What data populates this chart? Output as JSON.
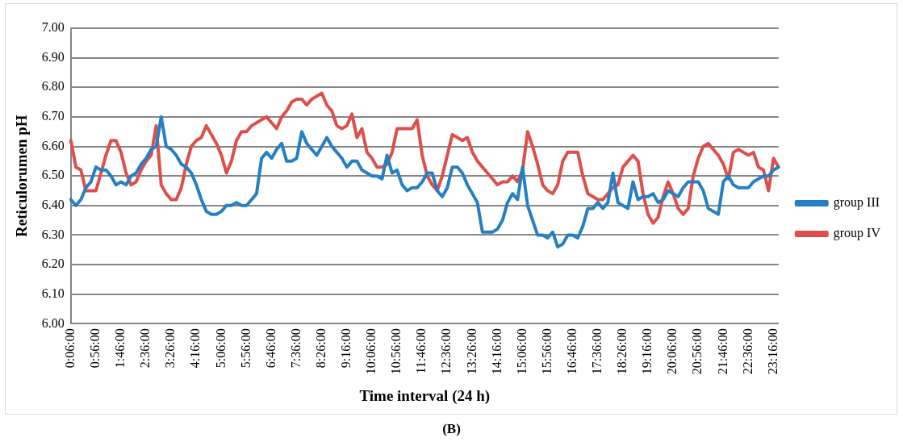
{
  "chart_data": {
    "type": "line",
    "xlabel": "Time interval (24 h)",
    "ylabel": "Reticulorumen pH",
    "categories": [
      "0:06:00",
      null,
      null,
      null,
      null,
      "0:56:00",
      null,
      null,
      null,
      null,
      "1:46:00",
      null,
      null,
      null,
      null,
      "2:36:00",
      null,
      null,
      null,
      null,
      "3:26:00",
      null,
      null,
      null,
      null,
      "4:16:00",
      null,
      null,
      null,
      null,
      "5:06:00",
      null,
      null,
      null,
      null,
      "5:56:00",
      null,
      null,
      null,
      null,
      "6:46:00",
      null,
      null,
      null,
      null,
      "7:36:00",
      null,
      null,
      null,
      null,
      "8:26:00",
      null,
      null,
      null,
      null,
      "9:16:00",
      null,
      null,
      null,
      null,
      "10:06:00",
      null,
      null,
      null,
      null,
      "10:56:00",
      null,
      null,
      null,
      null,
      "11:46:00",
      null,
      null,
      null,
      null,
      "12:36:00",
      null,
      null,
      null,
      null,
      "13:26:00",
      null,
      null,
      null,
      null,
      "14:16:00",
      null,
      null,
      null,
      null,
      "15:06:00",
      null,
      null,
      null,
      null,
      "15:56:00",
      null,
      null,
      null,
      null,
      "16:46:00",
      null,
      null,
      null,
      null,
      "17:36:00",
      null,
      null,
      null,
      null,
      "18:26:00",
      null,
      null,
      null,
      null,
      "19:16:00",
      null,
      null,
      null,
      null,
      "20:06:00",
      null,
      null,
      null,
      null,
      "20:56:00",
      null,
      null,
      null,
      null,
      "21:46:00",
      null,
      null,
      null,
      null,
      "22:36:00",
      null,
      null,
      null,
      null,
      "23:16:00",
      null
    ],
    "series": [
      {
        "name": "group III",
        "color": "#2580c3",
        "values": [
          6.42,
          6.4,
          6.42,
          6.46,
          6.48,
          6.53,
          6.52,
          6.52,
          6.5,
          6.47,
          6.48,
          6.47,
          6.5,
          6.51,
          6.54,
          6.56,
          6.59,
          6.6,
          6.7,
          6.6,
          6.59,
          6.57,
          6.54,
          6.53,
          6.51,
          6.47,
          6.42,
          6.38,
          6.37,
          6.37,
          6.38,
          6.4,
          6.4,
          6.41,
          6.4,
          6.4,
          6.42,
          6.44,
          6.56,
          6.58,
          6.56,
          6.59,
          6.61,
          6.55,
          6.55,
          6.56,
          6.65,
          6.61,
          6.59,
          6.57,
          6.6,
          6.63,
          6.6,
          6.58,
          6.56,
          6.53,
          6.55,
          6.55,
          6.52,
          6.51,
          6.5,
          6.5,
          6.49,
          6.57,
          6.51,
          6.52,
          6.47,
          6.45,
          6.46,
          6.46,
          6.48,
          6.51,
          6.51,
          6.45,
          6.43,
          6.46,
          6.53,
          6.53,
          6.51,
          6.47,
          6.44,
          6.41,
          6.31,
          6.31,
          6.31,
          6.32,
          6.35,
          6.41,
          6.44,
          6.42,
          6.53,
          6.4,
          6.35,
          6.3,
          6.3,
          6.29,
          6.31,
          6.26,
          6.27,
          6.3,
          6.3,
          6.29,
          6.33,
          6.39,
          6.39,
          6.41,
          6.39,
          6.41,
          6.51,
          6.41,
          6.4,
          6.39,
          6.48,
          6.42,
          6.43,
          6.43,
          6.44,
          6.41,
          6.42,
          6.45,
          6.44,
          6.43,
          6.46,
          6.48,
          6.48,
          6.48,
          6.45,
          6.39,
          6.38,
          6.37,
          6.48,
          6.5,
          6.47,
          6.46,
          6.46,
          6.46,
          6.48,
          6.49,
          6.5,
          6.5,
          6.52,
          6.53
        ]
      },
      {
        "name": "group IV",
        "color": "#dd4f4c",
        "values": [
          6.62,
          6.53,
          6.52,
          6.45,
          6.45,
          6.45,
          6.51,
          6.57,
          6.62,
          6.62,
          6.58,
          6.51,
          6.47,
          6.48,
          6.52,
          6.55,
          6.57,
          6.67,
          6.47,
          6.44,
          6.42,
          6.42,
          6.46,
          6.54,
          6.6,
          6.62,
          6.63,
          6.67,
          6.64,
          6.61,
          6.57,
          6.51,
          6.55,
          6.62,
          6.65,
          6.65,
          6.67,
          6.68,
          6.69,
          6.7,
          6.68,
          6.66,
          6.7,
          6.72,
          6.75,
          6.76,
          6.76,
          6.74,
          6.76,
          6.77,
          6.78,
          6.74,
          6.72,
          6.67,
          6.66,
          6.67,
          6.71,
          6.63,
          6.66,
          6.58,
          6.56,
          6.53,
          6.53,
          6.54,
          6.58,
          6.66,
          6.66,
          6.66,
          6.66,
          6.69,
          6.57,
          6.5,
          6.47,
          6.45,
          6.5,
          6.57,
          6.64,
          6.63,
          6.62,
          6.63,
          6.58,
          6.55,
          6.53,
          6.51,
          6.49,
          6.47,
          6.48,
          6.48,
          6.5,
          6.48,
          6.52,
          6.65,
          6.6,
          6.54,
          6.47,
          6.45,
          6.44,
          6.47,
          6.55,
          6.58,
          6.58,
          6.58,
          6.5,
          6.44,
          6.43,
          6.42,
          6.42,
          6.44,
          6.46,
          6.47,
          6.53,
          6.55,
          6.57,
          6.55,
          6.44,
          6.37,
          6.34,
          6.36,
          6.43,
          6.48,
          6.44,
          6.39,
          6.37,
          6.39,
          6.5,
          6.56,
          6.6,
          6.61,
          6.59,
          6.57,
          6.54,
          6.49,
          6.58,
          6.59,
          6.58,
          6.57,
          6.58,
          6.53,
          6.52,
          6.45,
          6.56,
          6.53
        ]
      }
    ],
    "ylim": [
      6,
      7
    ],
    "yticks": [
      {
        "value": 6,
        "label": "6.00"
      },
      {
        "value": 6.1,
        "label": "6.10"
      },
      {
        "value": 6.2,
        "label": "6.20"
      },
      {
        "value": 6.3,
        "label": "6.30"
      },
      {
        "value": 6.4,
        "label": "6.40"
      },
      {
        "value": 6.5,
        "label": "6.50"
      },
      {
        "value": 6.6,
        "label": "6.60"
      },
      {
        "value": 6.7,
        "label": "6.70"
      },
      {
        "value": 6.8,
        "label": "6.80"
      },
      {
        "value": 6.9,
        "label": "6.90"
      },
      {
        "value": 7,
        "label": "7.00"
      }
    ],
    "grid": "y",
    "legend": "right",
    "marker": "none",
    "line_style": "solid",
    "annotations": [
      "(B)"
    ]
  }
}
